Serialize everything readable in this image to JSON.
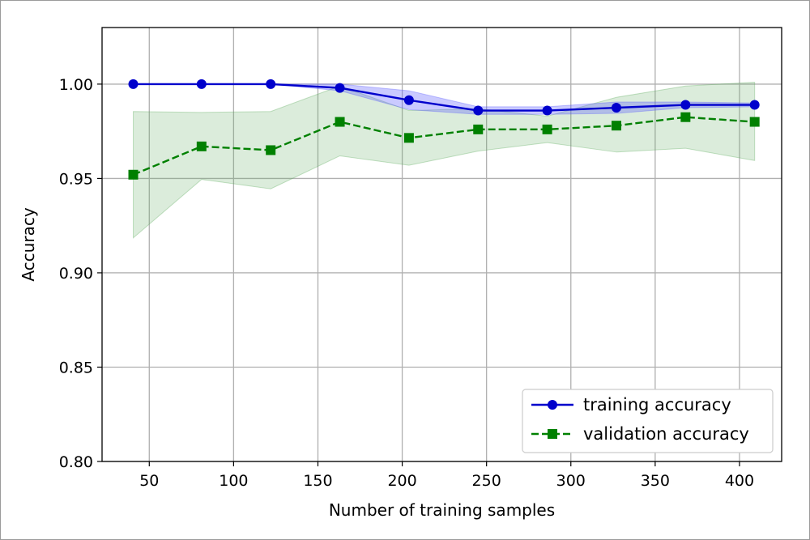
{
  "chart_data": {
    "type": "line",
    "xlabel": "Number of training samples",
    "ylabel": "Accuracy",
    "xlim": [
      22,
      425
    ],
    "ylim": [
      0.8,
      1.03
    ],
    "xticks": [
      50,
      100,
      150,
      200,
      250,
      300,
      350,
      400
    ],
    "yticks": [
      0.8,
      0.85,
      0.9,
      0.95,
      1.0
    ],
    "grid": true,
    "legend_position": "lower-right",
    "x": [
      40.5,
      81,
      122,
      163,
      204,
      245,
      286,
      327,
      368,
      409
    ],
    "series": [
      {
        "name": "training accuracy",
        "color": "#0000cc",
        "linestyle": "solid",
        "marker": "circle",
        "values": [
          1.0,
          1.0,
          1.0,
          0.998,
          0.9915,
          0.986,
          0.986,
          0.9875,
          0.989,
          0.989
        ],
        "band_upper": [
          1.0,
          1.0,
          1.0,
          1.0,
          0.9965,
          0.988,
          0.988,
          0.9905,
          0.9905,
          0.99
        ],
        "band_lower": [
          1.0,
          1.0,
          1.0,
          0.9965,
          0.9865,
          0.984,
          0.984,
          0.9845,
          0.9875,
          0.988
        ],
        "band_color": "#5a5aff"
      },
      {
        "name": "validation accuracy",
        "color": "#008000",
        "linestyle": "dashed",
        "marker": "square",
        "values": [
          0.952,
          0.967,
          0.965,
          0.98,
          0.9715,
          0.976,
          0.976,
          0.978,
          0.9825,
          0.98
        ],
        "band_upper": [
          0.9855,
          0.985,
          0.9855,
          0.999,
          0.986,
          0.987,
          0.983,
          0.993,
          0.999,
          1.001
        ],
        "band_lower": [
          0.9185,
          0.9495,
          0.9445,
          0.962,
          0.957,
          0.9645,
          0.969,
          0.964,
          0.966,
          0.9595
        ],
        "band_color": "#5aaa5a"
      }
    ]
  }
}
